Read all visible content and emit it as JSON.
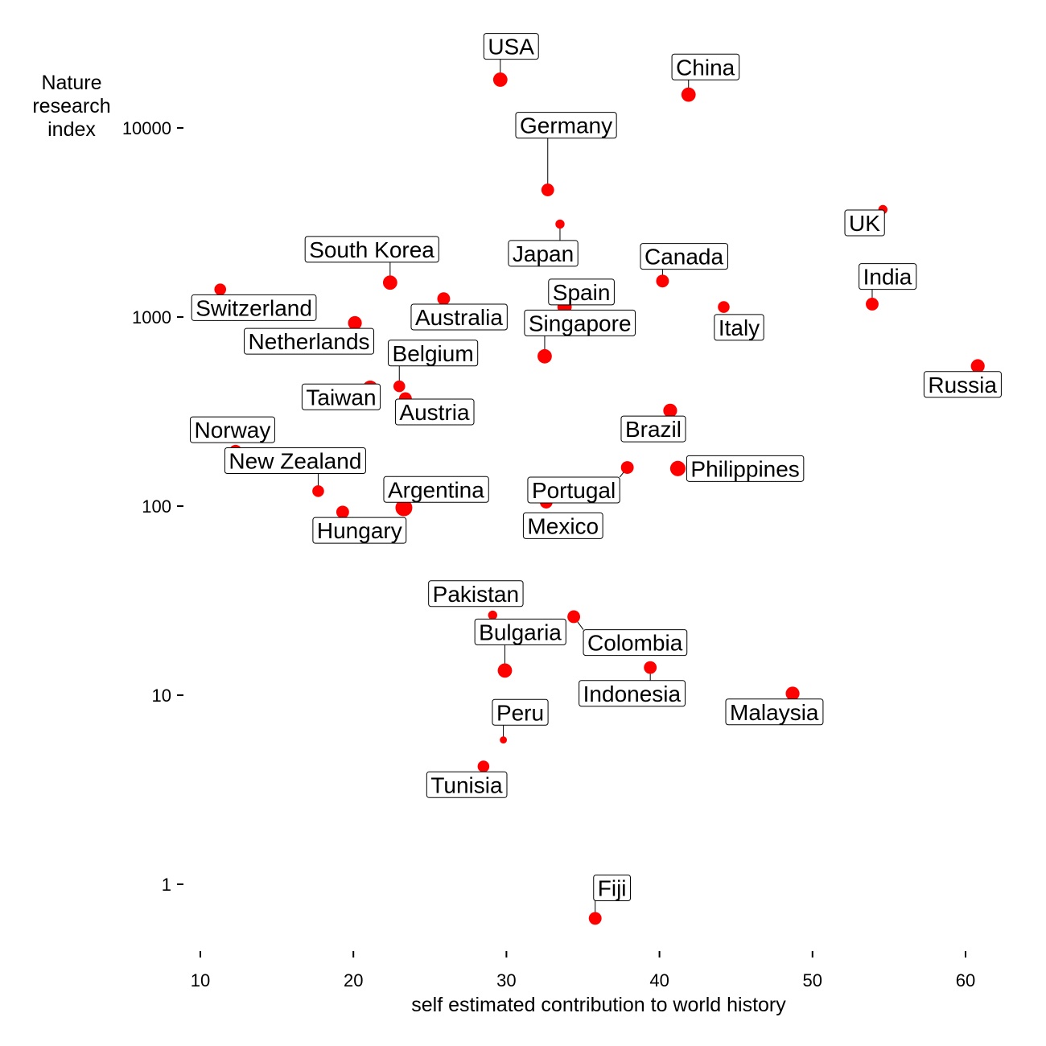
{
  "chart_data": {
    "type": "scatter",
    "xlabel": "self estimated contribution to world history",
    "ylabel": "Nature research index",
    "xlim": [
      9,
      63
    ],
    "ylim": [
      0.5,
      30000
    ],
    "y_scale": "log10",
    "x_ticks": [
      10,
      20,
      30,
      40,
      50,
      60
    ],
    "y_ticks": [
      1,
      10,
      100,
      1000,
      10000
    ],
    "y_tick_labels": [
      "1",
      "10",
      "100",
      "1000",
      "10000"
    ],
    "grid": false,
    "legend": "none",
    "point_color": "#ff0000",
    "points": [
      {
        "label": "USA",
        "x": 29.6,
        "y": 18000,
        "size": 2,
        "lx": 0.7,
        "ly": 1.5
      },
      {
        "label": "China",
        "x": 41.9,
        "y": 15000,
        "size": 2,
        "lx": 1.1,
        "ly": 1.4
      },
      {
        "label": "Germany",
        "x": 32.7,
        "y": 4700,
        "size": 1.7,
        "lx": 1.2,
        "ly": 2.2
      },
      {
        "label": "UK",
        "x": 54.6,
        "y": 3700,
        "size": 1,
        "lx": -1.2,
        "ly": 0.85
      },
      {
        "label": "Japan",
        "x": 33.5,
        "y": 3100,
        "size": 1,
        "lx": -1.1,
        "ly": 0.7
      },
      {
        "label": "Canada",
        "x": 40.2,
        "y": 1550,
        "size": 1.7,
        "lx": 1.4,
        "ly": 1.35
      },
      {
        "label": "South Korea",
        "x": 22.4,
        "y": 1520,
        "size": 2,
        "lx": -1.2,
        "ly": 1.5
      },
      {
        "label": "Switzerland",
        "x": 11.3,
        "y": 1400,
        "size": 1.5,
        "lx": 2.2,
        "ly": 0.8
      },
      {
        "label": "Australia",
        "x": 25.9,
        "y": 1250,
        "size": 1.7,
        "lx": 1.0,
        "ly": 0.8
      },
      {
        "label": "India",
        "x": 53.9,
        "y": 1170,
        "size": 1.7,
        "lx": 1.0,
        "ly": 1.4
      },
      {
        "label": "Italy",
        "x": 44.2,
        "y": 1130,
        "size": 1.5,
        "lx": 1.0,
        "ly": 0.78
      },
      {
        "label": "Spain",
        "x": 33.8,
        "y": 1130,
        "size": 2,
        "lx": 1.1,
        "ly": 1.2
      },
      {
        "label": "Netherlands",
        "x": 20.1,
        "y": 930,
        "size": 1.9,
        "lx": -3.0,
        "ly": 0.8
      },
      {
        "label": "Singapore",
        "x": 32.5,
        "y": 620,
        "size": 2,
        "lx": 2.3,
        "ly": 1.5
      },
      {
        "label": "Russia",
        "x": 60.8,
        "y": 550,
        "size": 1.9,
        "lx": -1.0,
        "ly": 0.8
      },
      {
        "label": "Belgium",
        "x": 23.0,
        "y": 430,
        "size": 1.5,
        "lx": 2.2,
        "ly": 1.5
      },
      {
        "label": "Taiwan",
        "x": 21.1,
        "y": 420,
        "size": 2.2,
        "lx": -1.9,
        "ly": 0.9
      },
      {
        "label": "Austria",
        "x": 23.4,
        "y": 370,
        "size": 1.7,
        "lx": 1.9,
        "ly": 0.85
      },
      {
        "label": "Brazil",
        "x": 40.7,
        "y": 320,
        "size": 1.9,
        "lx": -1.1,
        "ly": 0.8
      },
      {
        "label": "Norway",
        "x": 12.3,
        "y": 195,
        "size": 1.7,
        "lx": -0.2,
        "ly": 1.3
      },
      {
        "label": "Philippines",
        "x": 41.2,
        "y": 158,
        "size": 2.2,
        "lx": 4.4,
        "ly": 1.0
      },
      {
        "label": "Portugal",
        "x": 37.9,
        "y": 160,
        "size": 1.7,
        "lx": -3.5,
        "ly": 0.76
      },
      {
        "label": "New Zealand",
        "x": 17.7,
        "y": 120,
        "size": 1.5,
        "lx": -1.5,
        "ly": 1.45
      },
      {
        "label": "Argentina",
        "x": 23.3,
        "y": 98,
        "size": 2.5,
        "lx": 2.1,
        "ly": 1.25
      },
      {
        "label": "Mexico",
        "x": 32.6,
        "y": 105,
        "size": 1.7,
        "lx": 1.1,
        "ly": 0.75
      },
      {
        "label": "Hungary",
        "x": 19.3,
        "y": 93,
        "size": 1.7,
        "lx": 1.1,
        "ly": 0.8
      },
      {
        "label": "Pakistan",
        "x": 29.1,
        "y": 26.5,
        "size": 1,
        "lx": -1.1,
        "ly": 1.3
      },
      {
        "label": "Colombia",
        "x": 34.4,
        "y": 26,
        "size": 1.7,
        "lx": 4.0,
        "ly": 0.73
      },
      {
        "label": "Bulgaria",
        "x": 29.9,
        "y": 13.5,
        "size": 2,
        "lx": 1.0,
        "ly": 1.6
      },
      {
        "label": "Indonesia",
        "x": 39.4,
        "y": 14,
        "size": 1.7,
        "lx": -1.2,
        "ly": 0.73
      },
      {
        "label": "Malaysia",
        "x": 48.7,
        "y": 10.2,
        "size": 1.9,
        "lx": -1.2,
        "ly": 0.8
      },
      {
        "label": "Peru",
        "x": 29.8,
        "y": 5.8,
        "size": 0.6,
        "lx": 1.1,
        "ly": 1.4
      },
      {
        "label": "Tunisia",
        "x": 28.5,
        "y": 4.2,
        "size": 1.5,
        "lx": -1.1,
        "ly": 0.8
      },
      {
        "label": "Fiji",
        "x": 35.8,
        "y": 0.66,
        "size": 1.7,
        "lx": 1.1,
        "ly": 1.45
      }
    ]
  }
}
